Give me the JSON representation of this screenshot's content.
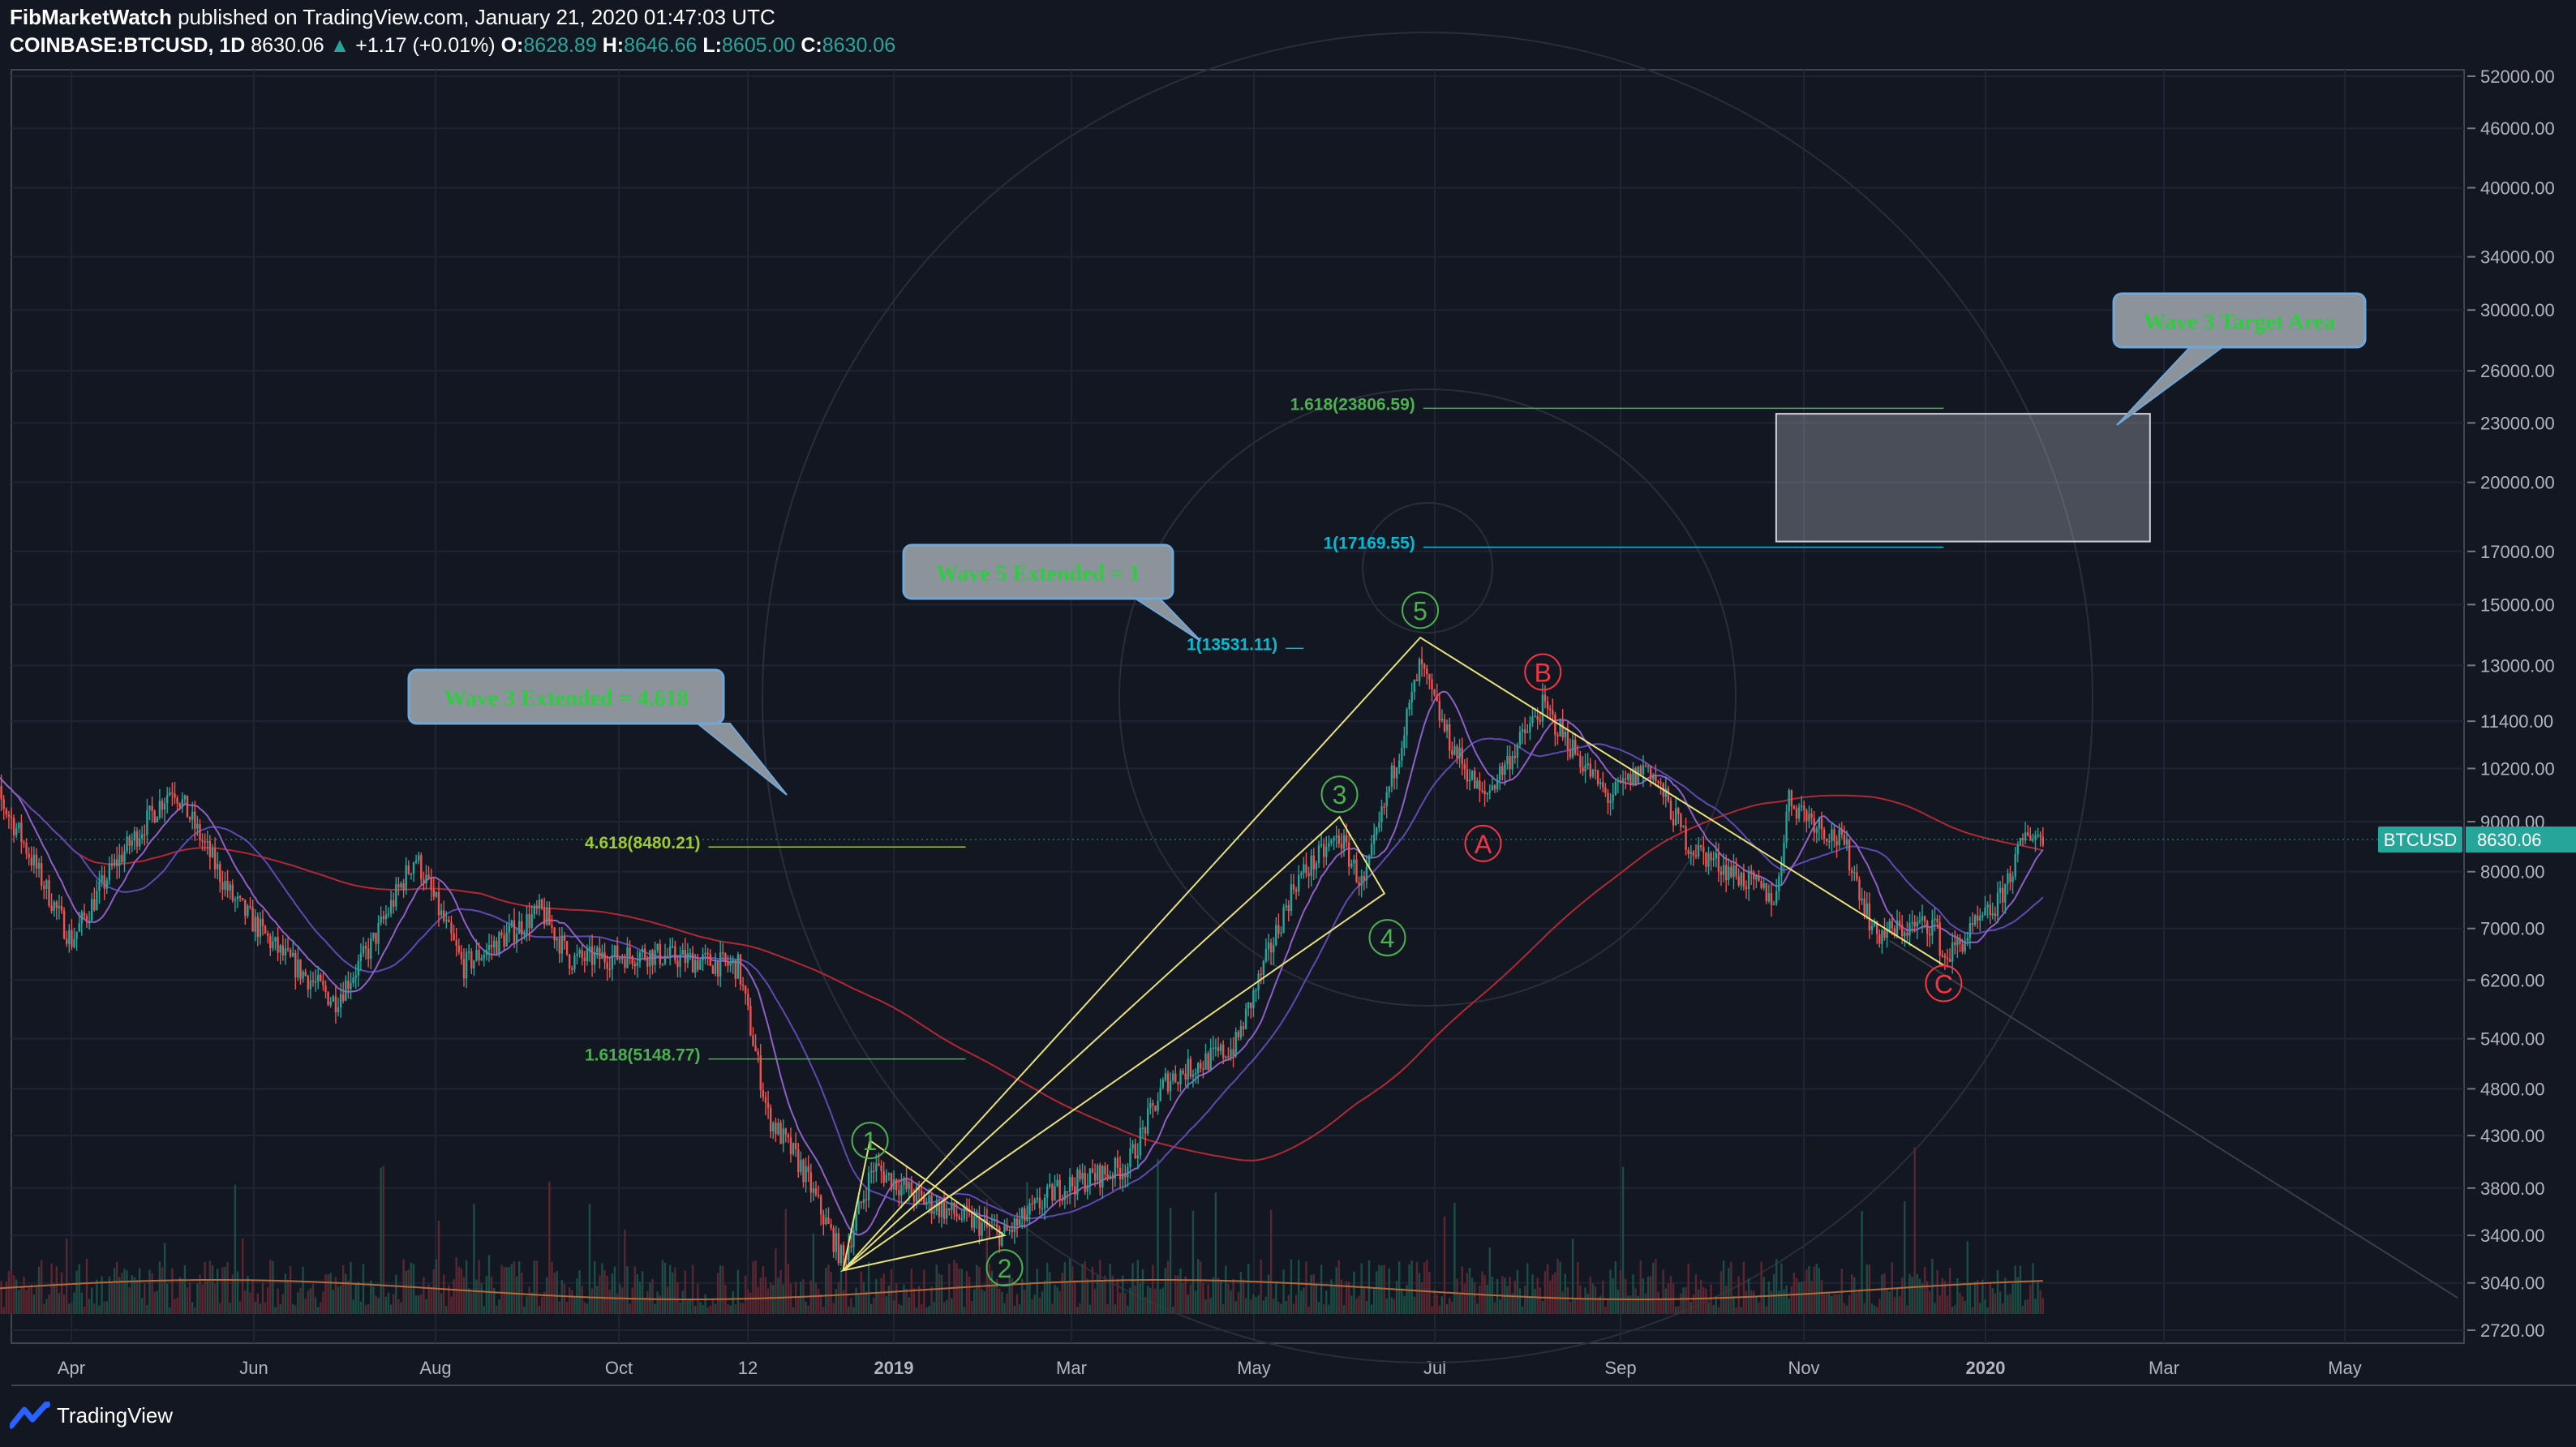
{
  "header": {
    "author": "FibMarketWatch",
    "published": "published on TradingView.com, January 21, 2020 01:47:03 UTC",
    "symbol": "COINBASE:BTCUSD, 1D",
    "last": "8630.06",
    "change_arrow": "▲",
    "change": "+1.17 (+0.01%)",
    "o_label": "O:",
    "o": "8628.89",
    "h_label": "H:",
    "h": "8646.66",
    "l_label": "L:",
    "l": "8605.00",
    "c_label": "C:",
    "c": "8630.06"
  },
  "footer": {
    "brand": "TradingView",
    "logo_icon": "tradingview-logo-icon"
  },
  "chart_data": {
    "type": "candlestick",
    "price_scale": "log",
    "grid": true,
    "x_ticks": [
      "Apr",
      "Jun",
      "Aug",
      "Oct",
      "12",
      "2019",
      "Mar",
      "May",
      "Jul",
      "Sep",
      "Nov",
      "2020",
      "Mar",
      "May"
    ],
    "y_ticks": [
      52000,
      46000,
      40000,
      34000,
      30000,
      26000,
      23000,
      20000,
      17000,
      15000,
      13000,
      11400,
      10200,
      9000,
      8000,
      7000,
      6200,
      5400,
      4800,
      4300,
      3800,
      3400,
      3040,
      2720
    ],
    "y_tick_labels": [
      "52000.00",
      "46000.00",
      "40000.00",
      "34000.00",
      "30000.00",
      "26000.00",
      "23000.00",
      "20000.00",
      "17000.00",
      "15000.00",
      "13000.00",
      "11400.00",
      "10200.00",
      "9000.00",
      "8000.00",
      "7000.00",
      "6200.00",
      "5400.00",
      "4800.00",
      "4300.00",
      "3800.00",
      "3400.00",
      "3040.00",
      "2720.00"
    ],
    "ylim": [
      2600,
      54000
    ],
    "last_price": {
      "symbol": "BTCUSD",
      "value": 8630.06,
      "label": "8630.06"
    },
    "price_path": [
      {
        "date": "2018-03-01",
        "close": 10400
      },
      {
        "date": "2018-03-15",
        "close": 8700
      },
      {
        "date": "2018-04-01",
        "close": 6800
      },
      {
        "date": "2018-04-15",
        "close": 8100
      },
      {
        "date": "2018-05-05",
        "close": 9800
      },
      {
        "date": "2018-05-25",
        "close": 7500
      },
      {
        "date": "2018-06-10",
        "close": 6600
      },
      {
        "date": "2018-06-28",
        "close": 5900
      },
      {
        "date": "2018-07-10",
        "close": 6700
      },
      {
        "date": "2018-07-25",
        "close": 8300
      },
      {
        "date": "2018-08-10",
        "close": 6400
      },
      {
        "date": "2018-08-25",
        "close": 6900
      },
      {
        "date": "2018-09-05",
        "close": 7300
      },
      {
        "date": "2018-09-15",
        "close": 6500
      },
      {
        "date": "2018-10-10",
        "close": 6600
      },
      {
        "date": "2018-11-10",
        "close": 6400
      },
      {
        "date": "2018-11-20",
        "close": 4500
      },
      {
        "date": "2018-12-01",
        "close": 4000
      },
      {
        "date": "2018-12-15",
        "close": 3200
      },
      {
        "date": "2018-12-25",
        "close": 4000
      },
      {
        "date": "2019-01-10",
        "close": 3700
      },
      {
        "date": "2019-02-07",
        "close": 3400
      },
      {
        "date": "2019-02-25",
        "close": 3800
      },
      {
        "date": "2019-03-20",
        "close": 4000
      },
      {
        "date": "2019-04-02",
        "close": 4900
      },
      {
        "date": "2019-04-25",
        "close": 5300
      },
      {
        "date": "2019-05-15",
        "close": 7800
      },
      {
        "date": "2019-05-30",
        "close": 8700
      },
      {
        "date": "2019-06-07",
        "close": 7700
      },
      {
        "date": "2019-06-26",
        "close": 13000
      },
      {
        "date": "2019-07-05",
        "close": 11000
      },
      {
        "date": "2019-07-17",
        "close": 9500
      },
      {
        "date": "2019-08-06",
        "close": 11800
      },
      {
        "date": "2019-08-28",
        "close": 9500
      },
      {
        "date": "2019-09-10",
        "close": 10300
      },
      {
        "date": "2019-09-24",
        "close": 8500
      },
      {
        "date": "2019-10-23",
        "close": 7500
      },
      {
        "date": "2019-10-27",
        "close": 9500
      },
      {
        "date": "2019-11-15",
        "close": 8500
      },
      {
        "date": "2019-11-25",
        "close": 6900
      },
      {
        "date": "2019-12-15",
        "close": 7100
      },
      {
        "date": "2019-12-18",
        "close": 6500
      },
      {
        "date": "2020-01-05",
        "close": 7400
      },
      {
        "date": "2020-01-15",
        "close": 8800
      },
      {
        "date": "2020-01-21",
        "close": 8630
      }
    ],
    "wave_labels": [
      {
        "label": "1",
        "date": "2018-12-24",
        "price": 4250,
        "color": "#4caf50"
      },
      {
        "label": "2",
        "date": "2019-02-07",
        "price": 3150,
        "color": "#4caf50"
      },
      {
        "label": "3",
        "date": "2019-05-30",
        "price": 9600,
        "color": "#4caf50"
      },
      {
        "label": "4",
        "date": "2019-06-15",
        "price": 6850,
        "color": "#4caf50"
      },
      {
        "label": "5",
        "date": "2019-06-26",
        "price": 14800,
        "color": "#4caf50"
      },
      {
        "label": "A",
        "date": "2019-07-17",
        "price": 8550,
        "color": "#f23645"
      },
      {
        "label": "B",
        "date": "2019-08-06",
        "price": 12800,
        "color": "#f23645"
      },
      {
        "label": "C",
        "date": "2019-12-18",
        "price": 6150,
        "color": "#f23645"
      }
    ],
    "fib_levels": [
      {
        "label": "4.618(8480.21)",
        "price": 8480.21,
        "color": "#9ccc2a",
        "from": "2018-10-31",
        "to": "2019-01-25"
      },
      {
        "label": "1.618(5148.77)",
        "price": 5148.77,
        "color": "#4caf50",
        "from": "2018-10-31",
        "to": "2019-01-25"
      },
      {
        "label": "1(13531.11)",
        "price": 13531.11,
        "color": "#00bcd4",
        "from": "2019-05-12",
        "to": "2019-05-18"
      },
      {
        "label": "1(17169.55)",
        "price": 17169.55,
        "color": "#00bcd4",
        "from": "2019-06-27",
        "to": "2019-12-18"
      },
      {
        "label": "1.618(23806.59)",
        "price": 23806.59,
        "color": "#4caf50",
        "from": "2019-06-27",
        "to": "2019-12-18"
      }
    ],
    "callouts": [
      {
        "text": "Wave 3 Extended = 4.618"
      },
      {
        "text": "Wave 5 Extended = 1"
      },
      {
        "text": "Wave 3 Target Area"
      }
    ],
    "target_box": {
      "from": "2019-10-23",
      "to": "2020-02-25",
      "price_low": 17400,
      "price_high": 23500
    }
  }
}
